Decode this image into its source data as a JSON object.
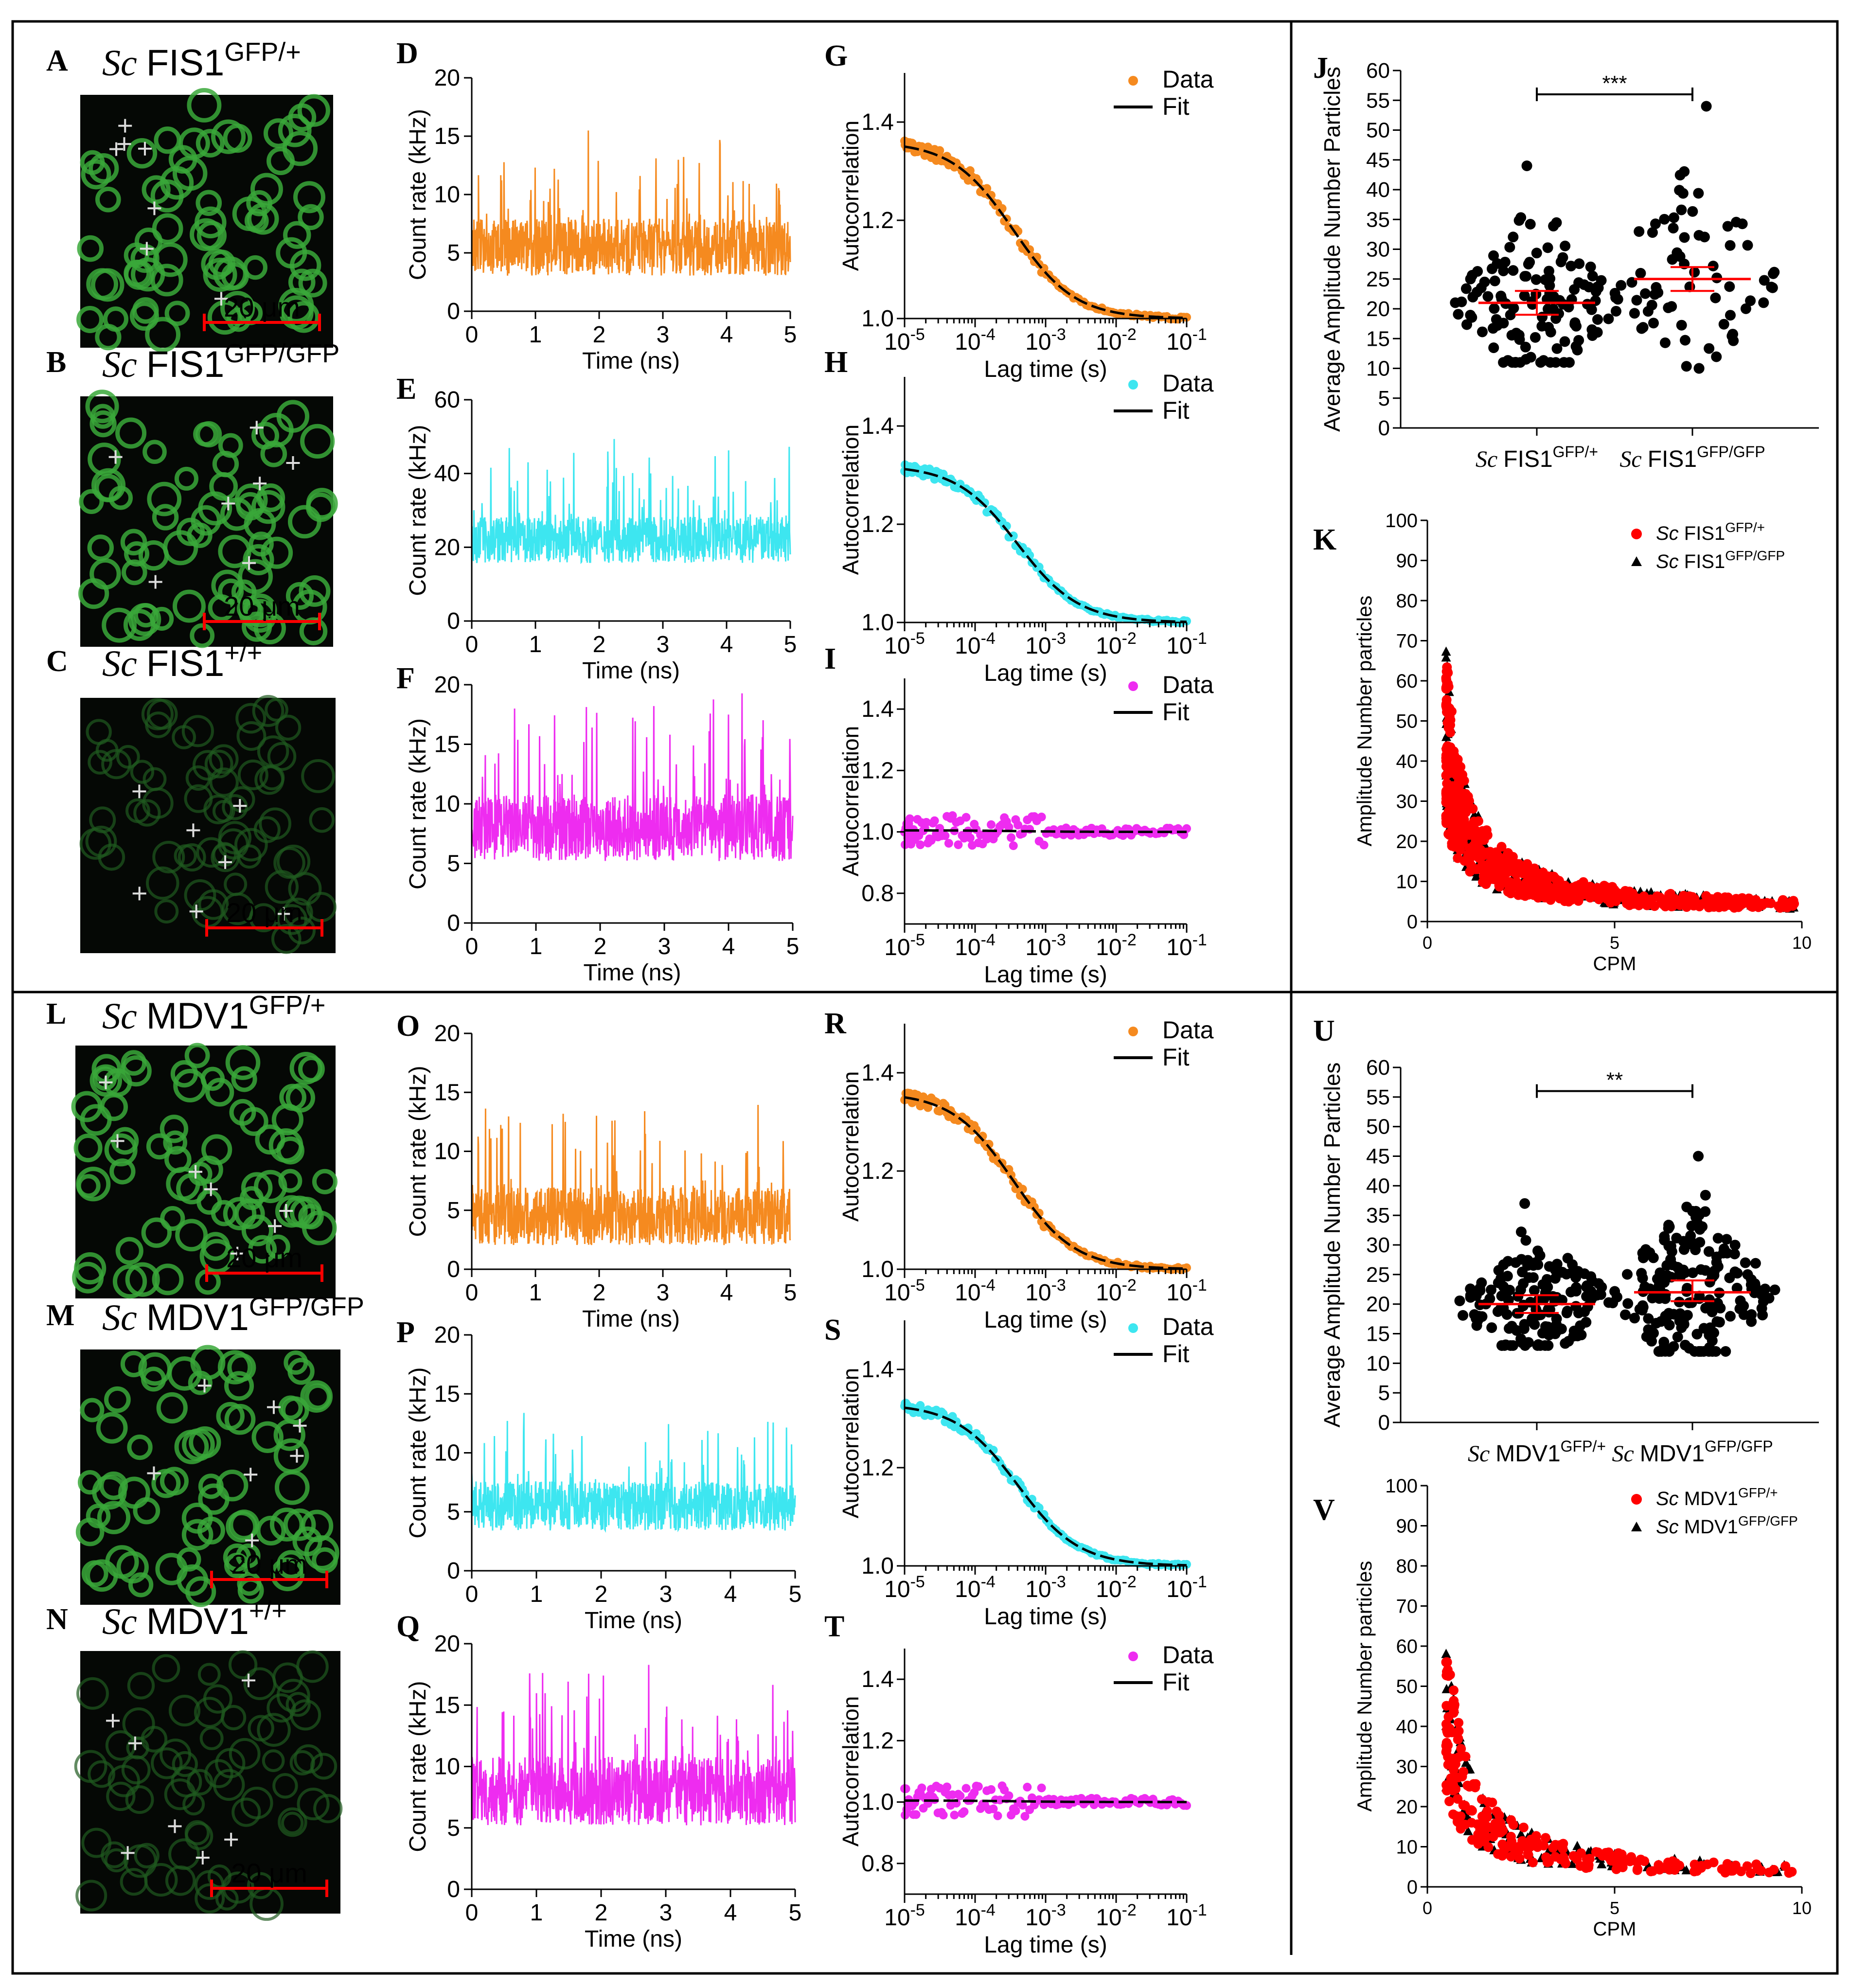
{
  "strains": {
    "A": {
      "letter": "A",
      "sc": "Sc",
      "gene": "FIS1",
      "sup": "GFP/+"
    },
    "B": {
      "letter": "B",
      "sc": "Sc",
      "gene": "FIS1",
      "sup": "GFP/GFP"
    },
    "C": {
      "letter": "C",
      "sc": "Sc",
      "gene": "FIS1",
      "sup": "+/+"
    },
    "L": {
      "letter": "L",
      "sc": "Sc",
      "gene": "MDV1",
      "sup": "GFP/+"
    },
    "M": {
      "letter": "M",
      "sc": "Sc",
      "gene": "MDV1",
      "sup": "GFP/GFP"
    },
    "N": {
      "letter": "N",
      "sc": "Sc",
      "gene": "MDV1",
      "sup": "+/+"
    }
  },
  "scale_bar": "20 μm",
  "colors": {
    "orange": "#f58a1f",
    "cyan": "#3de6f0",
    "magenta": "#ee2cf0",
    "red": "#ff0000",
    "black": "#000000",
    "cell": "#2f8f2f"
  },
  "trace_axes": {
    "xlabel": "Time (ns)",
    "ylabel": "Count rate (kHz)"
  },
  "corr_axes": {
    "xlabel": "Lag time (s)",
    "ylabel": "Autocorrelation",
    "legend_data": "Data",
    "legend_fit": "Fit"
  },
  "chart_data": [
    {
      "id": "D",
      "type": "line",
      "color": "orange",
      "ylim": [
        0,
        20
      ],
      "yticks": [
        0,
        5,
        10,
        15,
        20
      ],
      "xlim": [
        0,
        5
      ],
      "xticks": [
        0,
        1,
        2,
        3,
        4,
        5
      ],
      "mean": 5.5,
      "spread": 3.5
    },
    {
      "id": "E",
      "type": "line",
      "color": "cyan",
      "ylim": [
        0,
        60
      ],
      "yticks": [
        0,
        20,
        40,
        60
      ],
      "xlim": [
        0,
        5
      ],
      "xticks": [
        0,
        1,
        2,
        3,
        4,
        5
      ],
      "mean": 22,
      "spread": 9
    },
    {
      "id": "F",
      "type": "line",
      "color": "magenta",
      "ylim": [
        0,
        20
      ],
      "yticks": [
        0,
        5,
        10,
        15,
        20
      ],
      "xlim": [
        0,
        5
      ],
      "xticks": [
        0,
        1,
        2,
        3,
        4,
        5
      ],
      "mean": 8,
      "spread": 4
    },
    {
      "id": "O",
      "type": "line",
      "color": "orange",
      "ylim": [
        0,
        20
      ],
      "yticks": [
        0,
        5,
        10,
        15,
        20
      ],
      "xlim": [
        0,
        5
      ],
      "xticks": [
        0,
        1,
        2,
        3,
        4,
        5
      ],
      "mean": 4.5,
      "spread": 3.5
    },
    {
      "id": "P",
      "type": "line",
      "color": "cyan",
      "ylim": [
        0,
        20
      ],
      "yticks": [
        0,
        5,
        10,
        15,
        20
      ],
      "xlim": [
        0,
        5
      ],
      "xticks": [
        0,
        1,
        2,
        3,
        4,
        5
      ],
      "mean": 5.5,
      "spread": 3
    },
    {
      "id": "Q",
      "type": "line",
      "color": "magenta",
      "ylim": [
        0,
        20
      ],
      "yticks": [
        0,
        5,
        10,
        15,
        20
      ],
      "xlim": [
        0,
        5
      ],
      "xticks": [
        0,
        1,
        2,
        3,
        4,
        5
      ],
      "mean": 8,
      "spread": 4
    },
    {
      "id": "G",
      "type": "scatter",
      "color": "orange",
      "ylim": [
        1.0,
        1.5
      ],
      "yticks": [
        1.0,
        1.2,
        1.4
      ],
      "xlim_log10": [
        -5,
        -1
      ],
      "g0": 1.36,
      "tau": 0.00035,
      "noise": 0.012
    },
    {
      "id": "H",
      "type": "scatter",
      "color": "cyan",
      "ylim": [
        1.0,
        1.5
      ],
      "yticks": [
        1.0,
        1.2,
        1.4
      ],
      "xlim_log10": [
        -5,
        -1
      ],
      "g0": 1.32,
      "tau": 0.0004,
      "noise": 0.01
    },
    {
      "id": "I",
      "type": "scatter",
      "color": "magenta",
      "ylim": [
        0.7,
        1.5
      ],
      "yticks": [
        0.8,
        1.0,
        1.2,
        1.4
      ],
      "xlim_log10": [
        -5,
        -1
      ],
      "g0": 1.005,
      "tau": 0.0004,
      "noise": 0.05
    },
    {
      "id": "R",
      "type": "scatter",
      "color": "orange",
      "ylim": [
        1.0,
        1.5
      ],
      "yticks": [
        1.0,
        1.2,
        1.4
      ],
      "xlim_log10": [
        -5,
        -1
      ],
      "g0": 1.36,
      "tau": 0.00035,
      "noise": 0.012
    },
    {
      "id": "S",
      "type": "scatter",
      "color": "cyan",
      "ylim": [
        1.0,
        1.5
      ],
      "yticks": [
        1.0,
        1.2,
        1.4
      ],
      "xlim_log10": [
        -5,
        -1
      ],
      "g0": 1.33,
      "tau": 0.0004,
      "noise": 0.01
    },
    {
      "id": "T",
      "type": "scatter",
      "color": "magenta",
      "ylim": [
        0.7,
        1.5
      ],
      "yticks": [
        0.8,
        1.0,
        1.2,
        1.4
      ],
      "xlim_log10": [
        -5,
        -1
      ],
      "g0": 1.005,
      "tau": 0.0004,
      "noise": 0.05
    },
    {
      "id": "J",
      "type": "scatter",
      "ylabel": "Average Amplitude Number Particles",
      "ylim": [
        0,
        60
      ],
      "yticks": [
        0,
        5,
        10,
        15,
        20,
        25,
        30,
        35,
        40,
        45,
        50,
        55,
        60
      ],
      "categories": [
        "FIS1 GFP/+",
        "FIS1 GFP/GFP"
      ],
      "mean": [
        21,
        25
      ],
      "ci": [
        [
          19,
          23
        ],
        [
          23,
          27
        ]
      ],
      "range": [
        [
          11,
          44
        ],
        [
          10,
          54
        ]
      ],
      "n": [
        130,
        70
      ],
      "significance": "***"
    },
    {
      "id": "U",
      "type": "scatter",
      "ylabel": "Average Amplitude Number Particles",
      "ylim": [
        0,
        60
      ],
      "yticks": [
        0,
        5,
        10,
        15,
        20,
        25,
        30,
        35,
        40,
        45,
        50,
        55,
        60
      ],
      "categories": [
        "MDV1 GFP/+",
        "MDV1 GFP/GFP"
      ],
      "mean": [
        20,
        22
      ],
      "ci": [
        [
          18.5,
          21.5
        ],
        [
          20.5,
          24
        ]
      ],
      "range": [
        [
          13,
          37
        ],
        [
          12,
          45
        ]
      ],
      "n": [
        160,
        180
      ],
      "significance": "**"
    },
    {
      "id": "K",
      "type": "scatter",
      "xlabel": "CPM",
      "ylabel": "Amplitude Number particles",
      "xlim": [
        0,
        10
      ],
      "ylim": [
        0,
        100
      ],
      "xticks": [
        0,
        5,
        10
      ],
      "yticks": [
        0,
        10,
        20,
        30,
        40,
        50,
        60,
        70,
        80,
        90,
        100
      ],
      "series": [
        {
          "name": "Sc FIS1 GFP/+",
          "marker": "circle",
          "color": "red"
        },
        {
          "name": "Sc FIS1 GFP/GFP",
          "marker": "triangle",
          "color": "black"
        }
      ]
    },
    {
      "id": "V",
      "type": "scatter",
      "xlabel": "CPM",
      "ylabel": "Amplitude Number particles",
      "xlim": [
        0,
        10
      ],
      "ylim": [
        0,
        100
      ],
      "xticks": [
        0,
        5,
        10
      ],
      "yticks": [
        0,
        10,
        20,
        30,
        40,
        50,
        60,
        70,
        80,
        90,
        100
      ],
      "series": [
        {
          "name": "Sc MDV1 GFP/+",
          "marker": "circle",
          "color": "red"
        },
        {
          "name": "Sc MDV1 GFP/GFP",
          "marker": "triangle",
          "color": "black"
        }
      ]
    }
  ]
}
